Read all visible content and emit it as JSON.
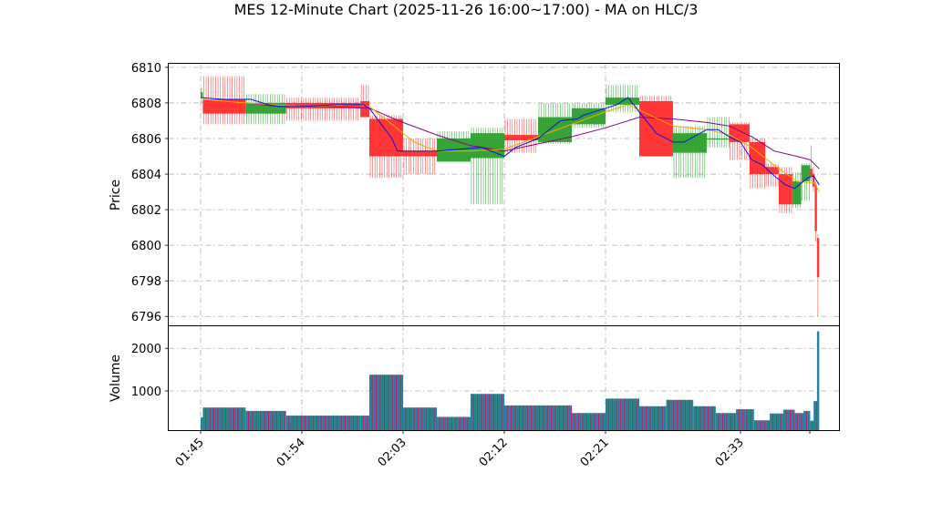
{
  "chart_data": {
    "type": "candlestick",
    "title": "MES 12-Minute Chart (2025-11-26 16:00~17:00) - MA on HLC/3",
    "price_panel": {
      "ylabel": "Price",
      "ylim": [
        6795.5,
        6810.2
      ],
      "yticks": [
        6796,
        6798,
        6800,
        6802,
        6804,
        6806,
        6808,
        6810
      ],
      "grid": true
    },
    "volume_panel": {
      "ylabel": "Volume",
      "ylim": [
        80,
        2540
      ],
      "yticks": [
        1000,
        2000
      ],
      "grid": true
    },
    "x_axis": {
      "start": "01:45",
      "end": "02:39",
      "ticks": [
        "01:45",
        "01:54",
        "02:03",
        "02:12",
        "02:21",
        "02:33"
      ]
    },
    "colors": {
      "up": "#2ca02c",
      "down": "#ff2d2d",
      "ma_fast": "#1010e0",
      "ma_mid": "#ffa500",
      "ma_slow": "#8b008b",
      "vol_up": "#1f77b4",
      "vol_down": "#c2185b",
      "volume_bar": "#2e8b8b"
    },
    "candles": [
      {
        "t": "01:45:00",
        "t2": "01:45:12",
        "o": 6808.3,
        "h": 6808.9,
        "l": 6808.0,
        "c": 6808.6
      },
      {
        "t": "01:45:12",
        "t2": "01:49:00",
        "o": 6808.2,
        "h": 6809.5,
        "l": 6806.8,
        "c": 6807.4
      },
      {
        "t": "01:49:00",
        "t2": "01:52:36",
        "o": 6807.4,
        "h": 6808.5,
        "l": 6806.8,
        "c": 6808.0
      },
      {
        "t": "01:52:36",
        "t2": "01:59:12",
        "o": 6808.0,
        "h": 6808.3,
        "l": 6807.0,
        "c": 6807.7
      },
      {
        "t": "01:59:12",
        "t2": "02:00:00",
        "o": 6808.1,
        "h": 6809.0,
        "l": 6807.2,
        "c": 6807.2
      },
      {
        "t": "02:00:00",
        "t2": "02:03:00",
        "o": 6807.1,
        "h": 6807.3,
        "l": 6803.8,
        "c": 6805.0
      },
      {
        "t": "02:03:00",
        "t2": "02:06:00",
        "o": 6805.3,
        "h": 6806.0,
        "l": 6804.0,
        "c": 6805.0
      },
      {
        "t": "02:06:00",
        "t2": "02:09:00",
        "o": 6804.7,
        "h": 6806.4,
        "l": 6804.7,
        "c": 6806.0
      },
      {
        "t": "02:09:00",
        "t2": "02:12:00",
        "o": 6804.9,
        "h": 6806.6,
        "l": 6802.3,
        "c": 6806.3
      },
      {
        "t": "02:12:00",
        "t2": "02:15:00",
        "o": 6806.2,
        "h": 6807.1,
        "l": 6805.2,
        "c": 6805.9
      },
      {
        "t": "02:15:00",
        "t2": "02:18:00",
        "o": 6805.8,
        "h": 6808.0,
        "l": 6805.7,
        "c": 6807.2
      },
      {
        "t": "02:18:00",
        "t2": "02:21:00",
        "o": 6806.8,
        "h": 6808.0,
        "l": 6806.6,
        "c": 6807.7
      },
      {
        "t": "02:21:00",
        "t2": "02:24:00",
        "o": 6807.9,
        "h": 6809.0,
        "l": 6807.5,
        "c": 6808.3
      },
      {
        "t": "02:24:00",
        "t2": "02:27:00",
        "o": 6808.1,
        "h": 6808.4,
        "l": 6805.0,
        "c": 6805.0
      },
      {
        "t": "02:27:00",
        "t2": "02:30:00",
        "o": 6805.2,
        "h": 6806.7,
        "l": 6803.8,
        "c": 6806.3
      },
      {
        "t": "02:30:00",
        "t2": "02:32:00",
        "o": 6806.0,
        "h": 6807.2,
        "l": 6805.5,
        "c": 6806.0
      },
      {
        "t": "02:32:00",
        "t2": "02:33:48",
        "o": 6806.8,
        "h": 6806.9,
        "l": 6804.8,
        "c": 6805.8
      },
      {
        "t": "02:33:48",
        "t2": "02:35:12",
        "o": 6805.8,
        "h": 6806.0,
        "l": 6803.2,
        "c": 6804.0
      },
      {
        "t": "02:35:12",
        "t2": "02:36:24",
        "o": 6804.4,
        "h": 6804.6,
        "l": 6803.3,
        "c": 6804.0
      },
      {
        "t": "02:36:24",
        "t2": "02:37:36",
        "o": 6804.0,
        "h": 6804.4,
        "l": 6801.8,
        "c": 6802.3
      },
      {
        "t": "02:37:36",
        "t2": "02:38:24",
        "o": 6802.3,
        "h": 6804.1,
        "l": 6802.1,
        "c": 6803.6
      },
      {
        "t": "02:38:24",
        "t2": "02:39:12",
        "o": 6803.6,
        "h": 6804.6,
        "l": 6802.5,
        "c": 6804.5
      },
      {
        "t": "02:39:12",
        "t2": "02:39:24",
        "o": 6804.3,
        "h": 6805.6,
        "l": 6803.6,
        "c": 6803.9
      },
      {
        "t": "02:39:24",
        "t2": "02:39:36",
        "o": 6804.0,
        "h": 6804.4,
        "l": 6803.0,
        "c": 6803.3
      },
      {
        "t": "02:39:36",
        "t2": "02:39:48",
        "o": 6803.4,
        "h": 6803.6,
        "l": 6800.2,
        "c": 6800.8
      },
      {
        "t": "02:39:48",
        "t2": "02:40:00",
        "o": 6800.4,
        "h": 6800.6,
        "l": 6796.0,
        "c": 6798.2
      }
    ],
    "volume": [
      {
        "t": "01:45:00",
        "t2": "01:45:12",
        "v": 380
      },
      {
        "t": "01:45:12",
        "t2": "01:49:00",
        "v": 610
      },
      {
        "t": "01:49:00",
        "t2": "01:52:36",
        "v": 530
      },
      {
        "t": "01:52:36",
        "t2": "01:59:12",
        "v": 420
      },
      {
        "t": "01:59:12",
        "t2": "02:00:00",
        "v": 420
      },
      {
        "t": "02:00:00",
        "t2": "02:03:00",
        "v": 1380
      },
      {
        "t": "02:03:00",
        "t2": "02:06:00",
        "v": 610
      },
      {
        "t": "02:06:00",
        "t2": "02:09:00",
        "v": 390
      },
      {
        "t": "02:09:00",
        "t2": "02:12:00",
        "v": 930
      },
      {
        "t": "02:12:00",
        "t2": "02:18:00",
        "v": 660
      },
      {
        "t": "02:18:00",
        "t2": "02:21:00",
        "v": 480
      },
      {
        "t": "02:21:00",
        "t2": "02:24:00",
        "v": 820
      },
      {
        "t": "02:24:00",
        "t2": "02:26:24",
        "v": 640
      },
      {
        "t": "02:26:24",
        "t2": "02:28:48",
        "v": 790
      },
      {
        "t": "02:28:48",
        "t2": "02:30:48",
        "v": 640
      },
      {
        "t": "02:30:48",
        "t2": "02:32:36",
        "v": 480
      },
      {
        "t": "02:32:36",
        "t2": "02:34:12",
        "v": 570
      },
      {
        "t": "02:34:12",
        "t2": "02:35:36",
        "v": 310
      },
      {
        "t": "02:35:36",
        "t2": "02:36:48",
        "v": 470
      },
      {
        "t": "02:36:48",
        "t2": "02:37:48",
        "v": 560
      },
      {
        "t": "02:37:48",
        "t2": "02:38:36",
        "v": 480
      },
      {
        "t": "02:38:36",
        "t2": "02:39:12",
        "v": 530
      },
      {
        "t": "02:39:12",
        "t2": "02:39:30",
        "v": 300
      },
      {
        "t": "02:39:30",
        "t2": "02:39:48",
        "v": 760
      },
      {
        "t": "02:39:48",
        "t2": "02:40:00",
        "v": 2400
      }
    ],
    "ma_fast": [
      [
        "01:45:00",
        6808.3
      ],
      [
        "01:47:00",
        6808.2
      ],
      [
        "01:49:30",
        6808.2
      ],
      [
        "01:51:00",
        6807.9
      ],
      [
        "01:52:00",
        6807.8
      ],
      [
        "01:54:00",
        6807.8
      ],
      [
        "01:57:00",
        6807.9
      ],
      [
        "01:59:30",
        6807.9
      ],
      [
        "02:00:00",
        6807.7
      ],
      [
        "02:02:00",
        6806.0
      ],
      [
        "02:02:30",
        6805.3
      ],
      [
        "02:04:00",
        6805.3
      ],
      [
        "02:06:00",
        6805.3
      ],
      [
        "02:08:00",
        6805.4
      ],
      [
        "02:10:00",
        6805.5
      ],
      [
        "02:12:00",
        6805.0
      ],
      [
        "02:13:00",
        6805.5
      ],
      [
        "02:15:00",
        6806.0
      ],
      [
        "02:17:00",
        6807.0
      ],
      [
        "02:18:30",
        6807.1
      ],
      [
        "02:19:00",
        6807.3
      ],
      [
        "02:21:00",
        6807.7
      ],
      [
        "02:22:00",
        6807.9
      ],
      [
        "02:23:00",
        6808.3
      ],
      [
        "02:24:00",
        6807.5
      ],
      [
        "02:25:30",
        6806.3
      ],
      [
        "02:27:00",
        6805.8
      ],
      [
        "02:28:00",
        6805.8
      ],
      [
        "02:30:00",
        6806.5
      ],
      [
        "02:31:00",
        6806.5
      ],
      [
        "02:32:00",
        6806.1
      ],
      [
        "02:33:00",
        6805.8
      ],
      [
        "02:34:00",
        6804.8
      ],
      [
        "02:35:00",
        6804.5
      ],
      [
        "02:36:00",
        6803.9
      ],
      [
        "02:37:00",
        6803.4
      ],
      [
        "02:37:48",
        6803.2
      ],
      [
        "02:38:24",
        6803.5
      ],
      [
        "02:39:00",
        6803.8
      ],
      [
        "02:39:30",
        6803.9
      ],
      [
        "02:40:00",
        6803.4
      ]
    ],
    "ma_mid": [
      [
        "01:45:12",
        6808.2
      ],
      [
        "01:49:00",
        6808.0
      ],
      [
        "01:54:00",
        6807.8
      ],
      [
        "01:59:00",
        6807.9
      ],
      [
        "02:00:00",
        6807.8
      ],
      [
        "02:02:00",
        6806.8
      ],
      [
        "02:04:00",
        6805.8
      ],
      [
        "02:06:00",
        6805.3
      ],
      [
        "02:09:00",
        6805.3
      ],
      [
        "02:12:00",
        6805.4
      ],
      [
        "02:15:00",
        6806.1
      ],
      [
        "02:18:00",
        6806.8
      ],
      [
        "02:21:00",
        6807.5
      ],
      [
        "02:23:00",
        6807.9
      ],
      [
        "02:25:00",
        6807.3
      ],
      [
        "02:27:00",
        6806.7
      ],
      [
        "02:30:00",
        6806.5
      ],
      [
        "02:32:00",
        6806.2
      ],
      [
        "02:34:00",
        6805.5
      ],
      [
        "02:36:00",
        6804.5
      ],
      [
        "02:38:00",
        6803.6
      ],
      [
        "02:39:12",
        6803.5
      ],
      [
        "02:39:36",
        6803.5
      ],
      [
        "02:40:00",
        6803.0
      ]
    ],
    "ma_slow": [
      [
        "01:49:00",
        6808.0
      ],
      [
        "01:52:00",
        6807.8
      ],
      [
        "01:56:00",
        6807.8
      ],
      [
        "02:00:00",
        6807.7
      ],
      [
        "02:03:00",
        6806.9
      ],
      [
        "02:06:00",
        6806.2
      ],
      [
        "02:09:00",
        6805.6
      ],
      [
        "02:12:00",
        6805.3
      ],
      [
        "02:15:00",
        6805.7
      ],
      [
        "02:18:00",
        6806.1
      ],
      [
        "02:21:00",
        6806.6
      ],
      [
        "02:24:00",
        6807.2
      ],
      [
        "02:27:00",
        6807.1
      ],
      [
        "02:30:00",
        6806.9
      ],
      [
        "02:32:00",
        6806.7
      ],
      [
        "02:34:00",
        6806.1
      ],
      [
        "02:36:00",
        6805.3
      ],
      [
        "02:38:00",
        6805.0
      ],
      [
        "02:39:12",
        6804.8
      ],
      [
        "02:40:00",
        6804.3
      ]
    ]
  }
}
